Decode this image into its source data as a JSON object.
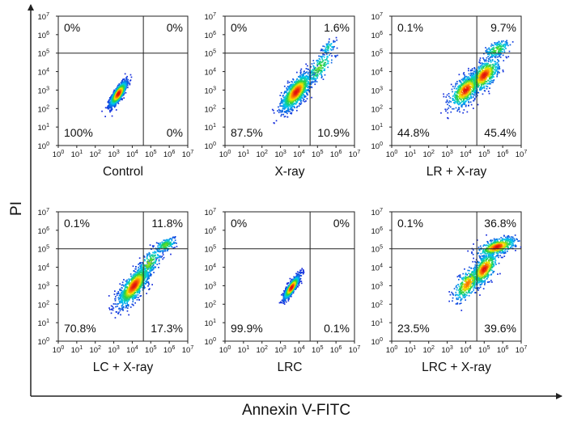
{
  "figure": {
    "ylabel": "PI",
    "xlabel": "Annexin V-FITC"
  },
  "chart_data": [
    {
      "type": "scatter",
      "title": "Control",
      "xlim": [
        0,
        7
      ],
      "ylim": [
        0,
        7
      ],
      "scale": "log10",
      "gate": {
        "x": 4.6,
        "y": 5.0
      },
      "quadrants": {
        "upper_left": "0%",
        "upper_right": "0%",
        "lower_left": "100%",
        "lower_right": "0%"
      },
      "populations": [
        {
          "x": 3.25,
          "y": 2.8,
          "sx": 0.22,
          "sy": 0.32,
          "rho": 0.8,
          "weight": 1.0
        }
      ]
    },
    {
      "type": "scatter",
      "title": "X-ray",
      "xlim": [
        0,
        7
      ],
      "ylim": [
        0,
        7
      ],
      "scale": "log10",
      "gate": {
        "x": 4.6,
        "y": 5.0
      },
      "quadrants": {
        "upper_left": "0%",
        "upper_right": "1.6%",
        "lower_left": "87.5%",
        "lower_right": "10.9%"
      },
      "populations": [
        {
          "x": 3.85,
          "y": 2.9,
          "sx": 0.4,
          "sy": 0.5,
          "rho": 0.7,
          "weight": 0.84
        },
        {
          "x": 5.1,
          "y": 4.2,
          "sx": 0.4,
          "sy": 0.5,
          "rho": 0.75,
          "weight": 0.12
        },
        {
          "x": 5.6,
          "y": 5.3,
          "sx": 0.2,
          "sy": 0.2,
          "rho": 0.5,
          "weight": 0.04
        }
      ]
    },
    {
      "type": "scatter",
      "title": "LR + X-ray",
      "xlim": [
        0,
        7
      ],
      "ylim": [
        0,
        7
      ],
      "scale": "log10",
      "gate": {
        "x": 4.6,
        "y": 5.0
      },
      "quadrants": {
        "upper_left": "0.1%",
        "upper_right": "9.7%",
        "lower_left": "44.8%",
        "lower_right": "45.4%"
      },
      "populations": [
        {
          "x": 4.0,
          "y": 3.0,
          "sx": 0.4,
          "sy": 0.45,
          "rho": 0.6,
          "weight": 0.45
        },
        {
          "x": 5.0,
          "y": 3.8,
          "sx": 0.4,
          "sy": 0.45,
          "rho": 0.6,
          "weight": 0.43
        },
        {
          "x": 5.7,
          "y": 5.2,
          "sx": 0.35,
          "sy": 0.25,
          "rho": 0.5,
          "weight": 0.12
        }
      ]
    },
    {
      "type": "scatter",
      "title": "LC + X-ray",
      "xlim": [
        0,
        7
      ],
      "ylim": [
        0,
        7
      ],
      "scale": "log10",
      "gate": {
        "x": 4.6,
        "y": 5.0
      },
      "quadrants": {
        "upper_left": "0.1%",
        "upper_right": "11.8%",
        "lower_left": "70.8%",
        "lower_right": "17.3%"
      },
      "populations": [
        {
          "x": 4.1,
          "y": 3.0,
          "sx": 0.42,
          "sy": 0.55,
          "rho": 0.75,
          "weight": 0.74
        },
        {
          "x": 4.9,
          "y": 4.2,
          "sx": 0.35,
          "sy": 0.45,
          "rho": 0.7,
          "weight": 0.14
        },
        {
          "x": 5.8,
          "y": 5.2,
          "sx": 0.28,
          "sy": 0.2,
          "rho": 0.5,
          "weight": 0.12
        }
      ]
    },
    {
      "type": "scatter",
      "title": "LRC",
      "xlim": [
        0,
        7
      ],
      "ylim": [
        0,
        7
      ],
      "scale": "log10",
      "gate": {
        "x": 4.6,
        "y": 5.0
      },
      "quadrants": {
        "upper_left": "0%",
        "upper_right": "0%",
        "lower_left": "99.9%",
        "lower_right": "0.1%"
      },
      "populations": [
        {
          "x": 3.6,
          "y": 2.9,
          "sx": 0.2,
          "sy": 0.3,
          "rho": 0.85,
          "weight": 1.0
        }
      ]
    },
    {
      "type": "scatter",
      "title": "LRC + X-ray",
      "xlim": [
        0,
        7
      ],
      "ylim": [
        0,
        7
      ],
      "scale": "log10",
      "gate": {
        "x": 4.6,
        "y": 5.0
      },
      "quadrants": {
        "upper_left": "0.1%",
        "upper_right": "36.8%",
        "lower_left": "23.5%",
        "lower_right": "39.6%"
      },
      "populations": [
        {
          "x": 4.1,
          "y": 3.1,
          "sx": 0.35,
          "sy": 0.45,
          "rho": 0.6,
          "weight": 0.25
        },
        {
          "x": 5.0,
          "y": 3.9,
          "sx": 0.35,
          "sy": 0.45,
          "rho": 0.6,
          "weight": 0.38
        },
        {
          "x": 5.7,
          "y": 5.1,
          "sx": 0.5,
          "sy": 0.25,
          "rho": 0.55,
          "weight": 0.37
        }
      ]
    }
  ]
}
